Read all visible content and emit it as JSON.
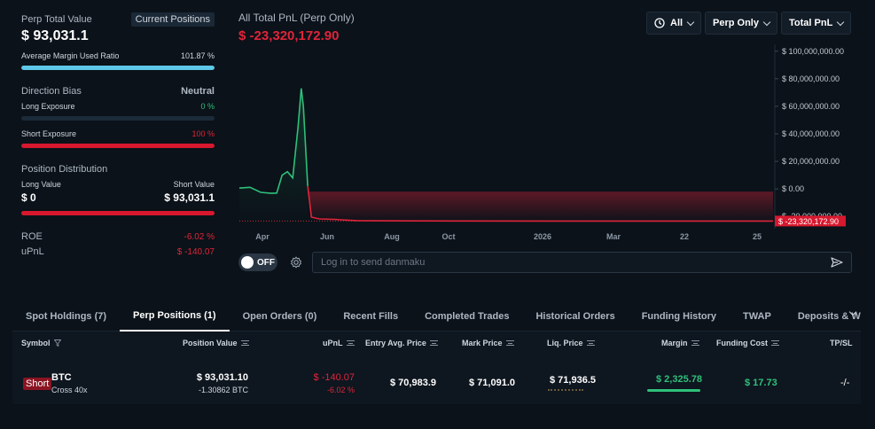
{
  "summary": {
    "perp_total_label": "Perp Total Value",
    "current_positions_label": "Current Positions",
    "perp_total_value": "$ 93,031.1",
    "margin_ratio_label": "Average Margin Used Ratio",
    "margin_ratio_value": "101.87 %",
    "margin_ratio_pct": 100,
    "direction_bias_label": "Direction Bias",
    "direction_bias_value": "Neutral",
    "long_exposure_label": "Long Exposure",
    "long_exposure_value": "0 %",
    "long_exposure_pct": 0,
    "short_exposure_label": "Short Exposure",
    "short_exposure_value": "100 %",
    "short_exposure_pct": 100,
    "position_dist_label": "Position Distribution",
    "long_value_label": "Long Value",
    "short_value_label": "Short Value",
    "long_value": "$ 0",
    "short_value": "$ 93,031.1",
    "roe_label": "ROE",
    "roe_value": "-6.02 %",
    "upnl_label": "uPnL",
    "upnl_value": "$ -140.07"
  },
  "chart_header": {
    "title": "All Total PnL (Perp Only)",
    "value": "$ -23,320,172.90"
  },
  "filters": {
    "time": "All",
    "scope": "Perp Only",
    "metric": "Total PnL"
  },
  "chart_data": {
    "type": "area",
    "title": "All Total PnL (Perp Only)",
    "x_tick_labels": [
      "Apr",
      "Jun",
      "Aug",
      "Oct",
      "2026",
      "Mar",
      "22",
      "25"
    ],
    "y_tick_labels": [
      "$ 100,000,000.00",
      "$ 80,000,000.00",
      "$ 60,000,000.00",
      "$ 40,000,000.00",
      "$ 20,000,000.00",
      "$ 0.00",
      "$ -20,000,000.00"
    ],
    "ylim": [
      -25000000,
      105000000
    ],
    "current_value_label": "$ -23,320,172.90",
    "series": [
      {
        "name": "Total PnL",
        "values": [
          [
            0,
            600000
          ],
          [
            2,
            1200000
          ],
          [
            4,
            -2500000
          ],
          [
            6,
            -3200000
          ],
          [
            7,
            -3000000
          ],
          [
            8,
            10000000
          ],
          [
            9,
            12500000
          ],
          [
            10,
            8000000
          ],
          [
            11,
            45000000
          ],
          [
            11.6,
            73000000
          ],
          [
            12,
            60000000
          ],
          [
            12.8,
            2000000
          ],
          [
            13.5,
            -20500000
          ],
          [
            15,
            -21800000
          ],
          [
            18,
            -22200000
          ],
          [
            22,
            -23000000
          ],
          [
            30,
            -23200000
          ],
          [
            60,
            -23300000
          ],
          [
            100,
            -23320172.9
          ]
        ]
      }
    ]
  },
  "social": {
    "toggle_label": "OFF",
    "danmaku_placeholder": "Log in to send danmaku"
  },
  "tabs": [
    "Spot Holdings (7)",
    "Perp Positions (1)",
    "Open Orders (0)",
    "Recent Fills",
    "Completed Trades",
    "Historical Orders",
    "Funding History",
    "TWAP",
    "Deposits & Withdraw"
  ],
  "table": {
    "headers": {
      "symbol": "Symbol",
      "position_value": "Position Value",
      "upnl": "uPnL",
      "entry": "Entry Avg. Price",
      "mark": "Mark Price",
      "liq": "Liq. Price",
      "margin": "Margin",
      "funding": "Funding Cost",
      "tpsl": "TP/SL"
    },
    "row": {
      "side": "Short",
      "symbol": "BTC",
      "leverage": "Cross 40x",
      "position_value": "$ 93,031.10",
      "position_size": "-1.30862 BTC",
      "upnl": "$ -140.07",
      "upnl_pct": "-6.02 %",
      "entry": "$ 70,983.9",
      "mark": "$ 71,091.0",
      "liq": "$ 71,936.5",
      "margin": "$ 2,325.78",
      "funding": "$ 17.73",
      "tpsl": "-/-"
    }
  },
  "colors": {
    "accent_blue": "#5ec8e8",
    "loss_red": "#e0243a",
    "gain_green": "#2fc07a",
    "background": "#0b1219"
  }
}
